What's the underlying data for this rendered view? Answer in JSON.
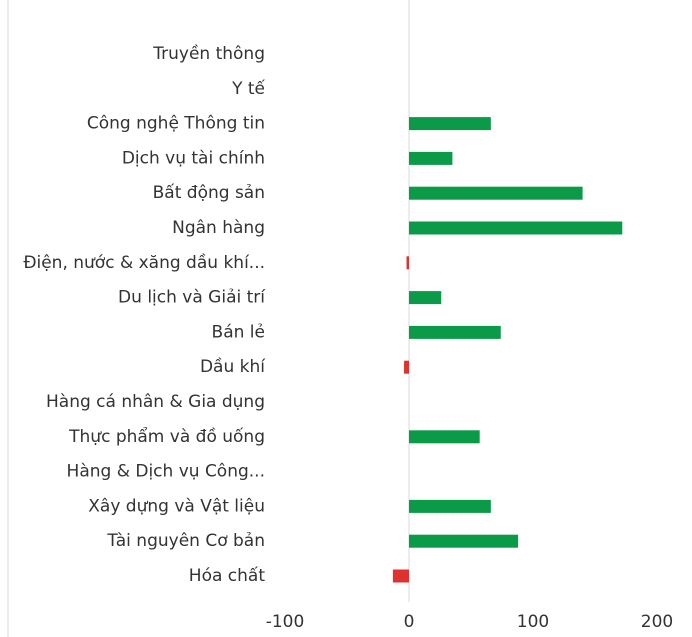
{
  "chart_data": {
    "type": "barh",
    "categories": [
      "Truyền thông",
      "Y tế",
      "Công nghệ Thông tin",
      "Dịch vụ tài chính",
      "Bất động sản",
      "Ngân hàng",
      "Điện, nước & xăng dầu khí...",
      "Du lịch và Giải trí",
      "Bán lẻ",
      "Dầu khí",
      "Hàng cá nhân & Gia dụng",
      "Thực phẩm và đồ uống",
      "Hàng & Dịch vụ Công...",
      "Xây dựng và Vật liệu",
      "Tài nguyên Cơ bản",
      "Hóa chất"
    ],
    "values": [
      0,
      0,
      66,
      35,
      140,
      172,
      -2,
      26,
      74,
      -4,
      0,
      57,
      0,
      66,
      88,
      -13
    ],
    "positive_color": "#0a9a48",
    "negative_color": "#e03131",
    "xlim": [
      -100,
      200
    ],
    "xticks": [
      -100,
      0,
      100,
      200
    ]
  }
}
